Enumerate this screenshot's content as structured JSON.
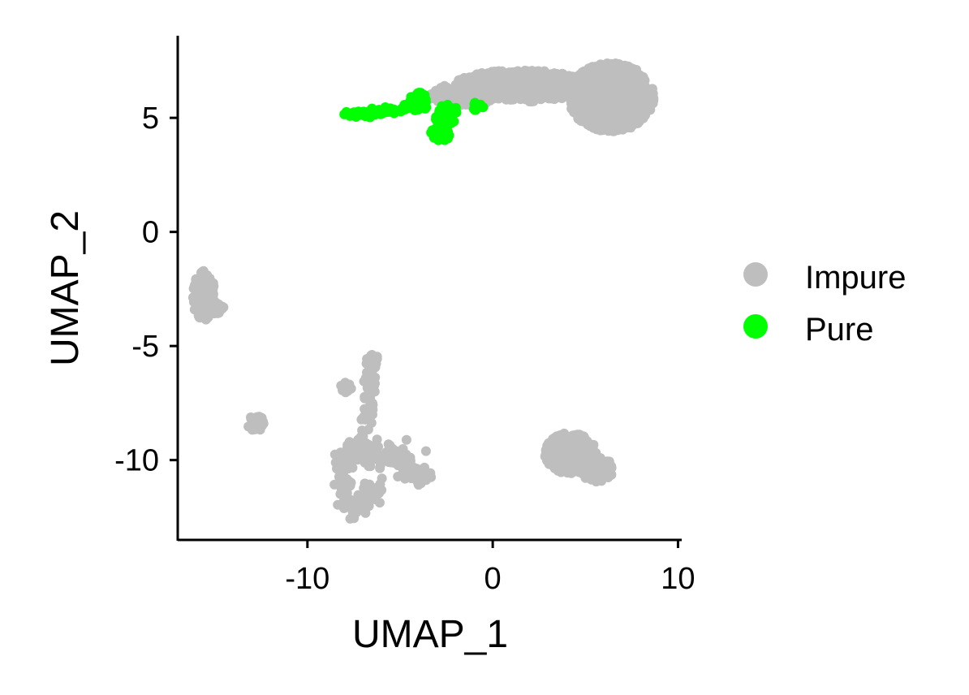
{
  "chart_data": {
    "type": "scatter",
    "xlabel": "UMAP_1",
    "ylabel": "UMAP_2",
    "xlim": [
      -17,
      10.2
    ],
    "ylim": [
      -13.5,
      8.6
    ],
    "x_ticks": [
      -10,
      0,
      10
    ],
    "x_tick_labels": [
      "-10",
      "0",
      "10"
    ],
    "y_ticks": [
      -10,
      -5,
      0,
      5
    ],
    "y_tick_labels": [
      "-10",
      "-5",
      "0",
      "5"
    ],
    "grid": false,
    "legend_position": "right",
    "series": [
      {
        "name": "Impure",
        "color": "#bebebe",
        "clusters": [
          {
            "shape": "ellipse",
            "cx": 6.4,
            "cy": 5.9,
            "rx": 2.3,
            "ry": 1.5,
            "n": 900
          },
          {
            "shape": "ellipse",
            "cx": 1.5,
            "cy": 6.4,
            "rx": 3.6,
            "ry": 0.7,
            "n": 500
          },
          {
            "shape": "ellipse",
            "cx": -1.6,
            "cy": 6.0,
            "rx": 1.8,
            "ry": 0.5,
            "n": 150
          },
          {
            "shape": "ellipse",
            "cx": -15.6,
            "cy": -2.8,
            "rx": 0.6,
            "ry": 1.1,
            "n": 130
          },
          {
            "shape": "ellipse",
            "cx": -14.9,
            "cy": -3.3,
            "rx": 0.4,
            "ry": 0.3,
            "n": 20
          },
          {
            "shape": "ellipse",
            "cx": -12.8,
            "cy": -8.4,
            "rx": 0.5,
            "ry": 0.35,
            "n": 35
          },
          {
            "shape": "ellipse",
            "cx": -7.9,
            "cy": -6.8,
            "rx": 0.3,
            "ry": 0.25,
            "n": 12
          },
          {
            "shape": "ellipse",
            "cx": 4.2,
            "cy": -9.7,
            "rx": 1.4,
            "ry": 0.9,
            "n": 260
          },
          {
            "shape": "ellipse",
            "cx": 5.6,
            "cy": -10.4,
            "rx": 0.9,
            "ry": 0.55,
            "n": 90
          },
          {
            "shape": "ellipse",
            "cx": -6.5,
            "cy": -5.7,
            "rx": 0.35,
            "ry": 0.35,
            "n": 30
          },
          {
            "shape": "path",
            "points": [
              [
                -6.5,
                -5.7
              ],
              [
                -6.6,
                -6.8
              ],
              [
                -6.8,
                -7.8
              ],
              [
                -6.9,
                -8.7
              ]
            ],
            "n": 45,
            "spread": 0.18
          },
          {
            "shape": "path",
            "points": [
              [
                -8.3,
                -9.8
              ],
              [
                -7.3,
                -9.6
              ],
              [
                -6.2,
                -9.7
              ],
              [
                -5.0,
                -9.9
              ],
              [
                -4.4,
                -10.5
              ],
              [
                -3.6,
                -10.6
              ]
            ],
            "n": 160,
            "spread": 0.3
          },
          {
            "shape": "path",
            "points": [
              [
                -8.0,
                -10.0
              ],
              [
                -8.2,
                -11.0
              ],
              [
                -7.8,
                -12.0
              ],
              [
                -7.3,
                -12.4
              ],
              [
                -6.9,
                -12.0
              ],
              [
                -6.6,
                -11.5
              ],
              [
                -6.1,
                -11.2
              ]
            ],
            "n": 90,
            "spread": 0.25
          }
        ]
      },
      {
        "name": "Pure",
        "color": "#00ff00",
        "clusters": [
          {
            "shape": "path",
            "points": [
              [
                -7.9,
                5.15
              ],
              [
                -6.5,
                5.2
              ],
              [
                -5.2,
                5.35
              ],
              [
                -4.3,
                5.55
              ]
            ],
            "n": 90,
            "spread": 0.08
          },
          {
            "shape": "ellipse",
            "cx": -4.0,
            "cy": 5.7,
            "rx": 0.5,
            "ry": 0.45,
            "n": 60
          },
          {
            "shape": "ellipse",
            "cx": -2.8,
            "cy": 4.3,
            "rx": 0.55,
            "ry": 0.3,
            "n": 70
          },
          {
            "shape": "ellipse",
            "cx": -2.6,
            "cy": 5.1,
            "rx": 0.6,
            "ry": 0.5,
            "n": 40
          },
          {
            "shape": "ellipse",
            "cx": -0.8,
            "cy": 5.5,
            "rx": 0.3,
            "ry": 0.2,
            "n": 12
          },
          {
            "shape": "ellipse",
            "cx": -2.0,
            "cy": 5.35,
            "rx": 0.15,
            "ry": 0.12,
            "n": 4
          }
        ]
      }
    ]
  }
}
